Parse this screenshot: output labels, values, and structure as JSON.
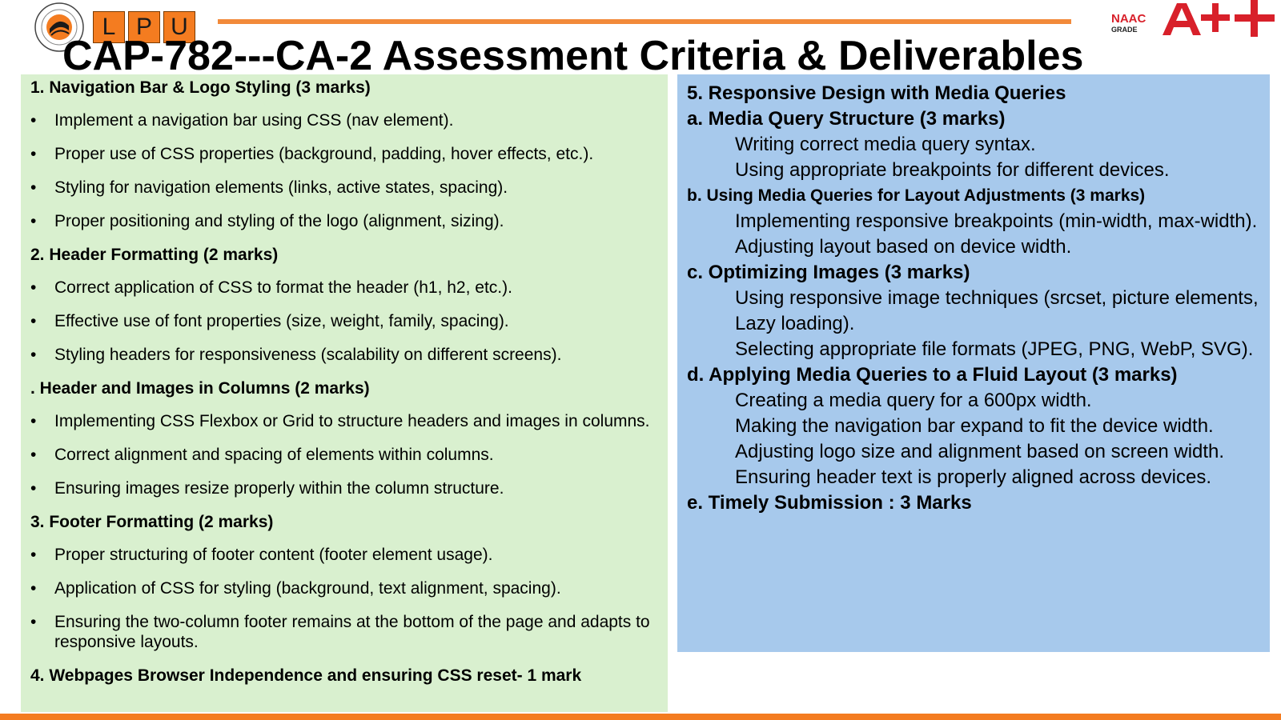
{
  "branding": {
    "lpu_letters": [
      "L",
      "P",
      "U"
    ],
    "naac_text": "NAAC",
    "grade_text": "GRADE",
    "grade_mark": "A++",
    "accent_color": "#f47c20",
    "naac_color": "#d8202a"
  },
  "title": "CAP-782---CA-2 Assessment Criteria & Deliverables",
  "left": {
    "sections": [
      {
        "heading": "1. Navigation Bar & Logo Styling (3 marks)",
        "bullets": [
          "Implement a navigation bar using CSS (nav element).",
          "Proper use of CSS properties (background, padding, hover effects, etc.).",
          "Styling for navigation elements (links, active states, spacing).",
          "Proper positioning and styling of the logo (alignment, sizing)."
        ]
      },
      {
        "heading": "2. Header Formatting (2 marks)",
        "bullets": [
          "Correct application of CSS to format the header (h1, h2, etc.).",
          "Effective use of font properties (size, weight, family, spacing).",
          "Styling headers for responsiveness (scalability on different screens)."
        ]
      },
      {
        "heading": ". Header and Images in Columns (2 marks)",
        "bullets": [
          "Implementing CSS Flexbox or Grid to structure headers and images in columns.",
          "Correct alignment and spacing of elements within columns.",
          "Ensuring images resize properly within the column structure."
        ]
      },
      {
        "heading": "3. Footer Formatting (2 marks)",
        "bullets": [
          "Proper structuring of footer content (footer element usage).",
          "Application of CSS for styling (background, text alignment, spacing).",
          "Ensuring the two-column footer remains at the bottom of the page and adapts to responsive layouts."
        ]
      },
      {
        "heading": "4. Webpages  Browser Independence and ensuring CSS reset- 1 mark",
        "bullets": []
      }
    ]
  },
  "right": {
    "title": "5. Responsive Design with Media Queries",
    "subsections": [
      {
        "heading": "a. Media Query Structure (3 marks)",
        "lines": [
          "Writing correct media query syntax.",
          "Using appropriate breakpoints for different devices."
        ]
      },
      {
        "heading": "b. Using Media Queries for Layout Adjustments (3 marks)",
        "lines": [
          "Implementing responsive breakpoints (min-width, max-width).",
          "Adjusting layout based on device width."
        ]
      },
      {
        "heading": "c. Optimizing Images (3 marks)",
        "lines": [
          "Using responsive image techniques (srcset, picture elements, Lazy loading).",
          "Selecting appropriate file formats (JPEG, PNG, WebP, SVG)."
        ]
      },
      {
        "heading": "d. Applying Media Queries to a Fluid Layout (3 marks)",
        "lines": [
          "Creating a media query for a 600px width.",
          "Making the navigation bar expand to fit the device width.",
          "Adjusting logo size and alignment based on screen width.",
          "Ensuring header text is properly aligned across devices."
        ]
      },
      {
        "heading": "e. Timely Submission : 3 Marks",
        "lines": []
      }
    ]
  }
}
